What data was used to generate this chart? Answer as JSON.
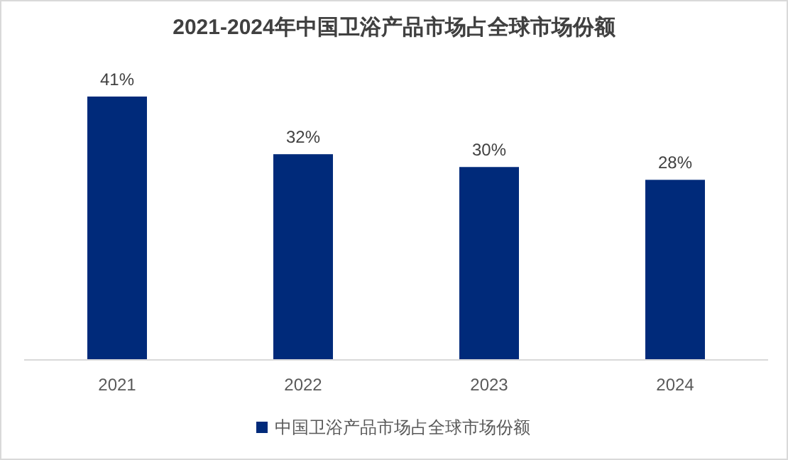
{
  "chart_data": {
    "type": "bar",
    "title": "2021-2024年中国卫浴产品市场占全球市场份额",
    "categories": [
      "2021",
      "2022",
      "2023",
      "2024"
    ],
    "series": [
      {
        "name": "中国卫浴产品市场占全球市场份额",
        "color": "#002a7a",
        "values": [
          41,
          32,
          30,
          28
        ],
        "value_labels": [
          "41%",
          "32%",
          "30%",
          "28%"
        ]
      }
    ],
    "legend": "bottom"
  }
}
